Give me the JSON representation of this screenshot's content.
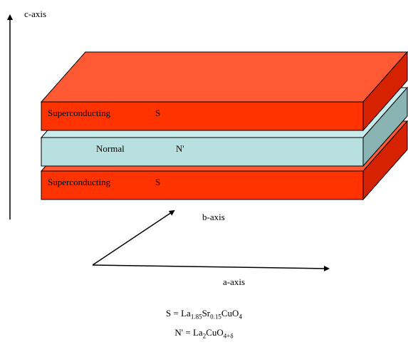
{
  "axes": {
    "c": "c-axis",
    "b": "b-axis",
    "a": "a-axis"
  },
  "layers": {
    "top": {
      "label": "Superconducting",
      "symbol": "S",
      "color": "#ff3300",
      "top_face_color": "#ff5a33",
      "side_color": "#d62200"
    },
    "middle": {
      "label": "Normal",
      "symbol": "N'",
      "color": "#b8e0e0",
      "top_face_color": "#c8ecec",
      "side_color": "#8ab3b3"
    },
    "bottom": {
      "label": "Superconducting",
      "symbol": "S",
      "color": "#ff3300",
      "top_face_color": "#ff5a33",
      "side_color": "#d62200"
    }
  },
  "formulas": {
    "s": {
      "lhs": "S = ",
      "parts": [
        "La",
        "1.85",
        "Sr",
        "0.15",
        "CuO",
        "4"
      ]
    },
    "n": {
      "lhs": "N' = ",
      "parts": [
        "La",
        "2",
        "CuO",
        "4+δ"
      ]
    }
  }
}
